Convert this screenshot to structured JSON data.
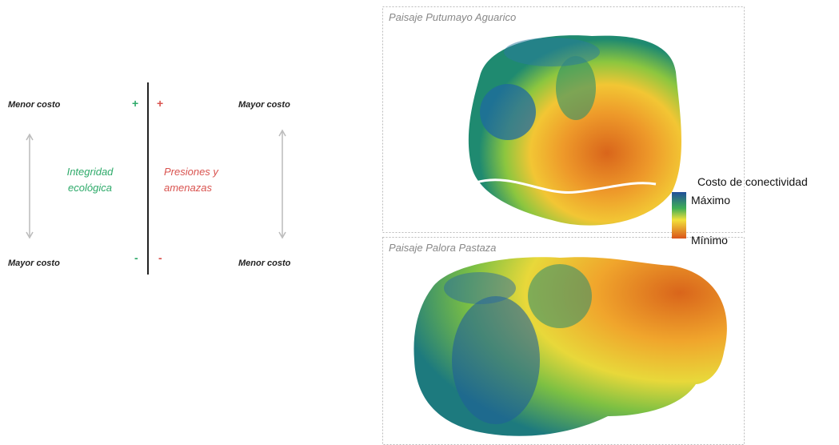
{
  "scheme": {
    "top_left": "Menor costo",
    "top_right": "Mayor costo",
    "bottom_left": "Mayor costo",
    "bottom_right": "Menor costo",
    "left_label": "Integridad ecológica",
    "right_label": "Presiones y amenazas",
    "plus_left": "+",
    "plus_right": "+",
    "minus_left": "-",
    "minus_right": "-"
  },
  "maps": [
    {
      "title": "Paisaje Putumayo Aguarico"
    },
    {
      "title": "Paisaje Palora Pastaza"
    }
  ],
  "legend": {
    "title": "Costo de conectividad",
    "max": "Máximo",
    "min": "Mínimo"
  }
}
